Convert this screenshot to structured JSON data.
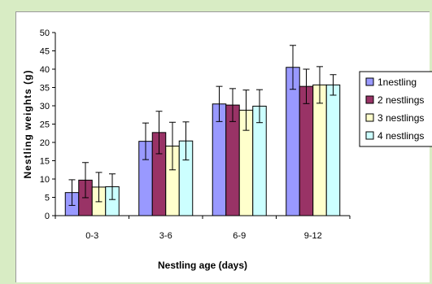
{
  "chart_data": {
    "type": "bar",
    "categories": [
      "0-3",
      "3-6",
      "6-9",
      "9-12"
    ],
    "series": [
      {
        "name": "1nestling",
        "color": "#9999ff",
        "values": [
          6.3,
          20.3,
          30.5,
          40.5
        ],
        "errors": [
          3.5,
          5.0,
          4.8,
          6.0
        ]
      },
      {
        "name": "2 nestlings",
        "color": "#993366",
        "values": [
          9.7,
          22.7,
          30.2,
          35.3
        ],
        "errors": [
          4.8,
          5.8,
          4.5,
          4.7
        ]
      },
      {
        "name": "3 nestlings",
        "color": "#ffffcc",
        "values": [
          7.8,
          19.0,
          28.8,
          35.7
        ],
        "errors": [
          4.0,
          6.5,
          5.5,
          5.0
        ]
      },
      {
        "name": "4 nestlings",
        "color": "#ccffff",
        "values": [
          7.9,
          20.4,
          29.9,
          35.7
        ],
        "errors": [
          3.5,
          5.2,
          4.5,
          2.8
        ]
      }
    ],
    "title": "",
    "xlabel": "Nestling age (days)",
    "ylabel": "Nestling weights (g)",
    "ylim": [
      0,
      50
    ],
    "yticks": [
      0,
      5,
      10,
      15,
      20,
      25,
      30,
      35,
      40,
      45,
      50
    ],
    "grid": false,
    "legend": "right",
    "error_bars": true
  }
}
